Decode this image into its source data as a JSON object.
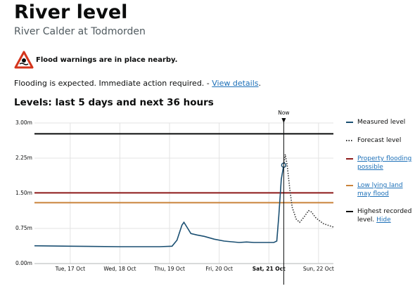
{
  "header": {
    "title": "River level",
    "subtitle": "River Calder at Todmorden"
  },
  "warning": {
    "title": "Flood warnings are in place nearby.",
    "message": "Flooding is expected. Immediate action required. -",
    "link": "View details",
    "end": "."
  },
  "section_title": "Levels: last 5 days and next 36 hours",
  "chart_data": {
    "type": "line",
    "xlim": [
      16.78,
      22.8
    ],
    "ylim": [
      0,
      3
    ],
    "yticks": [
      {
        "value": 3,
        "label": "3.00m"
      },
      {
        "value": 2.25,
        "label": "2.25m"
      },
      {
        "value": 1.5,
        "label": "1.50m"
      },
      {
        "value": 0.75,
        "label": "0.75m"
      },
      {
        "value": 0,
        "label": "0.00m"
      }
    ],
    "xticks": [
      {
        "value": 17.5,
        "label": "Tue, 17 Oct"
      },
      {
        "value": 18.5,
        "label": "Wed, 18 Oct"
      },
      {
        "value": 19.5,
        "label": "Thu, 19 Oct"
      },
      {
        "value": 20.5,
        "label": "Fri, 20 Oct"
      },
      {
        "value": 21.5,
        "label": "Sat, 21 Oct"
      },
      {
        "value": 22.5,
        "label": "Sun, 22 Oct"
      }
    ],
    "grid": true,
    "now": {
      "x": 21.8,
      "label": "Now"
    },
    "series": [
      {
        "name": "Measured level",
        "color": "#1a4f72",
        "style": "solid",
        "x": [
          16.78,
          17.5,
          18.5,
          19.3,
          19.55,
          19.65,
          19.75,
          19.79,
          19.85,
          19.93,
          20.05,
          20.2,
          20.4,
          20.6,
          20.9,
          21.05,
          21.2,
          21.6,
          21.66,
          21.7,
          21.75,
          21.8
        ],
        "values": [
          0.38,
          0.37,
          0.36,
          0.36,
          0.37,
          0.5,
          0.82,
          0.88,
          0.78,
          0.64,
          0.61,
          0.58,
          0.52,
          0.48,
          0.45,
          0.46,
          0.45,
          0.45,
          0.48,
          1.0,
          1.8,
          2.1
        ]
      },
      {
        "name": "Forecast level",
        "color": "#333333",
        "style": "dotted",
        "x": [
          21.8,
          21.83,
          21.87,
          21.92,
          21.97,
          22.05,
          22.12,
          22.2,
          22.3,
          22.36,
          22.45,
          22.6,
          22.8
        ],
        "values": [
          2.1,
          2.33,
          2.1,
          1.6,
          1.2,
          0.95,
          0.88,
          0.98,
          1.13,
          1.1,
          0.97,
          0.85,
          0.78
        ]
      }
    ],
    "thresholds": [
      {
        "name": "Property flooding possible",
        "color": "#8e1b1b",
        "value": 1.51,
        "link": true
      },
      {
        "name": "Low lying land may flood",
        "color": "#c9833b",
        "value": 1.3,
        "link": true
      },
      {
        "name": "Highest recorded level.",
        "color": "#0b0c0c",
        "value": 2.77,
        "link": false,
        "action": "Hide"
      }
    ]
  }
}
